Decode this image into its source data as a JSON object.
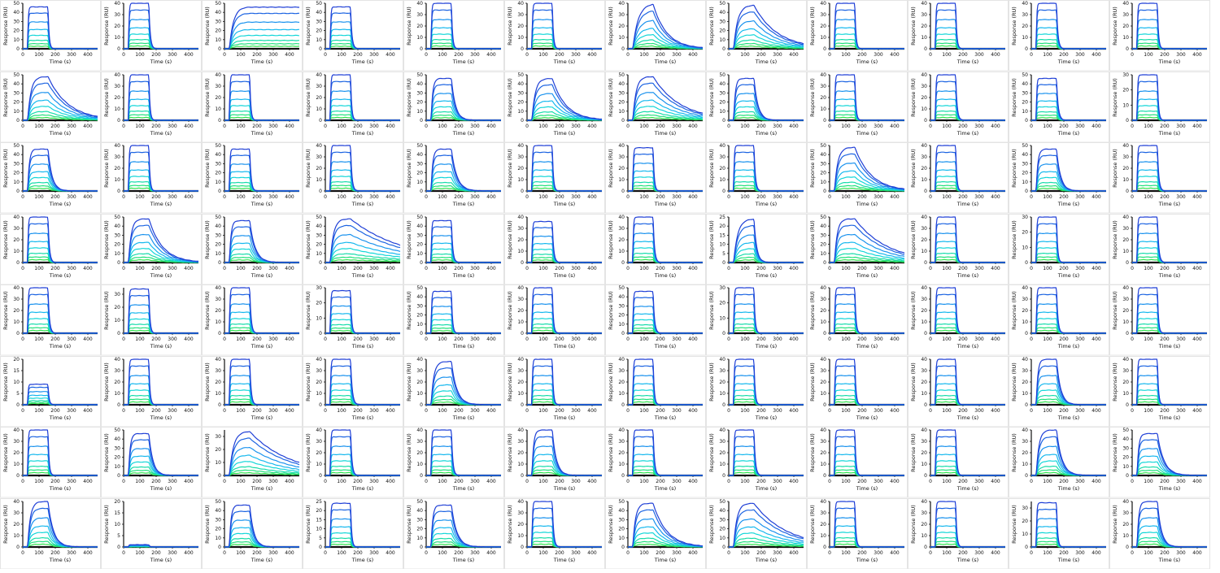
{
  "labels": {
    "x_axis": "Time (s)",
    "y_axis": "Response (RU)"
  },
  "x_ticks": [
    0,
    100,
    200,
    300,
    400
  ],
  "colors": [
    "#1f3fd6",
    "#1c64e2",
    "#1a92ee",
    "#16b8ee",
    "#12d6d8",
    "#16dcaa",
    "#1fe07c",
    "#2ee34d"
  ],
  "chart_data": {
    "type": "line",
    "grid": false,
    "xlim": [
      0,
      460
    ],
    "xlabel": "Time (s)",
    "ylabel": "Response (RU)",
    "rows": 8,
    "cols": 12,
    "concentration_fractions": [
      1,
      0.85,
      0.64,
      0.46,
      0.32,
      0.2,
      0.12,
      0.06
    ],
    "panels": [
      {
        "ymax": 50,
        "rmax": 46,
        "ka": 0.3,
        "kd": 0.15
      },
      {
        "ymax": 40,
        "rmax": 40,
        "ka": 0.3,
        "kd": 0.12
      },
      {
        "ymax": 50,
        "rmax": 46,
        "ka": 0.04,
        "kd": 0.0
      },
      {
        "ymax": 50,
        "rmax": 46,
        "ka": 0.3,
        "kd": 0.12
      },
      {
        "ymax": 40,
        "rmax": 40,
        "ka": 0.3,
        "kd": 0.15
      },
      {
        "ymax": 40,
        "rmax": 40,
        "ka": 0.3,
        "kd": 0.15
      },
      {
        "ymax": 40,
        "rmax": 40,
        "ka": 0.03,
        "kd": 0.012
      },
      {
        "ymax": 50,
        "rmax": 48,
        "ka": 0.04,
        "kd": 0.007
      },
      {
        "ymax": 40,
        "rmax": 40,
        "ka": 0.3,
        "kd": 0.15
      },
      {
        "ymax": 40,
        "rmax": 40,
        "ka": 0.3,
        "kd": 0.15
      },
      {
        "ymax": 40,
        "rmax": 40,
        "ka": 0.3,
        "kd": 0.12
      },
      {
        "ymax": 40,
        "rmax": 40,
        "ka": 0.3,
        "kd": 0.15
      },
      {
        "ymax": 50,
        "rmax": 48,
        "ka": 0.05,
        "kd": 0.008
      },
      {
        "ymax": 40,
        "rmax": 40,
        "ka": 0.3,
        "kd": 0.15
      },
      {
        "ymax": 40,
        "rmax": 40,
        "ka": 0.3,
        "kd": 0.15
      },
      {
        "ymax": 40,
        "rmax": 40,
        "ka": 0.3,
        "kd": 0.15
      },
      {
        "ymax": 50,
        "rmax": 46,
        "ka": 0.1,
        "kd": 0.04
      },
      {
        "ymax": 50,
        "rmax": 46,
        "ka": 0.05,
        "kd": 0.012
      },
      {
        "ymax": 50,
        "rmax": 48,
        "ka": 0.05,
        "kd": 0.006
      },
      {
        "ymax": 50,
        "rmax": 46,
        "ka": 0.1,
        "kd": 0.04
      },
      {
        "ymax": 40,
        "rmax": 40,
        "ka": 0.3,
        "kd": 0.15
      },
      {
        "ymax": 40,
        "rmax": 40,
        "ka": 0.3,
        "kd": 0.12
      },
      {
        "ymax": 50,
        "rmax": 46,
        "ka": 0.3,
        "kd": 0.1
      },
      {
        "ymax": 30,
        "rmax": 30,
        "ka": 0.3,
        "kd": 0.15
      },
      {
        "ymax": 50,
        "rmax": 46,
        "ka": 0.1,
        "kd": 0.04
      },
      {
        "ymax": 40,
        "rmax": 40,
        "ka": 0.3,
        "kd": 0.15
      },
      {
        "ymax": 50,
        "rmax": 46,
        "ka": 0.3,
        "kd": 0.12
      },
      {
        "ymax": 40,
        "rmax": 40,
        "ka": 0.3,
        "kd": 0.12
      },
      {
        "ymax": 50,
        "rmax": 46,
        "ka": 0.1,
        "kd": 0.03
      },
      {
        "ymax": 40,
        "rmax": 40,
        "ka": 0.3,
        "kd": 0.15
      },
      {
        "ymax": 40,
        "rmax": 38,
        "ka": 0.3,
        "kd": 0.15
      },
      {
        "ymax": 40,
        "rmax": 40,
        "ka": 0.3,
        "kd": 0.12
      },
      {
        "ymax": 50,
        "rmax": 48,
        "ka": 0.05,
        "kd": 0.01
      },
      {
        "ymax": 40,
        "rmax": 40,
        "ka": 0.3,
        "kd": 0.15
      },
      {
        "ymax": 50,
        "rmax": 46,
        "ka": 0.1,
        "kd": 0.04
      },
      {
        "ymax": 40,
        "rmax": 40,
        "ka": 0.3,
        "kd": 0.12
      },
      {
        "ymax": 40,
        "rmax": 40,
        "ka": 0.3,
        "kd": 0.12
      },
      {
        "ymax": 50,
        "rmax": 48,
        "ka": 0.06,
        "kd": 0.012
      },
      {
        "ymax": 50,
        "rmax": 46,
        "ka": 0.1,
        "kd": 0.03
      },
      {
        "ymax": 50,
        "rmax": 48,
        "ka": 0.05,
        "kd": 0.003
      },
      {
        "ymax": 50,
        "rmax": 46,
        "ka": 0.3,
        "kd": 0.12
      },
      {
        "ymax": 40,
        "rmax": 36,
        "ka": 0.3,
        "kd": 0.12
      },
      {
        "ymax": 40,
        "rmax": 40,
        "ka": 0.3,
        "kd": 0.12
      },
      {
        "ymax": 25,
        "rmax": 24,
        "ka": 0.04,
        "kd": 0.06
      },
      {
        "ymax": 50,
        "rmax": 48,
        "ka": 0.06,
        "kd": 0.005
      },
      {
        "ymax": 40,
        "rmax": 40,
        "ka": 0.3,
        "kd": 0.15
      },
      {
        "ymax": 30,
        "rmax": 30,
        "ka": 0.3,
        "kd": 0.15
      },
      {
        "ymax": 40,
        "rmax": 40,
        "ka": 0.3,
        "kd": 0.12
      },
      {
        "ymax": 40,
        "rmax": 40,
        "ka": 0.3,
        "kd": 0.12
      },
      {
        "ymax": 35,
        "rmax": 34,
        "ka": 0.3,
        "kd": 0.15
      },
      {
        "ymax": 40,
        "rmax": 40,
        "ka": 0.3,
        "kd": 0.12
      },
      {
        "ymax": 30,
        "rmax": 28,
        "ka": 0.3,
        "kd": 0.15
      },
      {
        "ymax": 50,
        "rmax": 46,
        "ka": 0.3,
        "kd": 0.15
      },
      {
        "ymax": 40,
        "rmax": 40,
        "ka": 0.3,
        "kd": 0.15
      },
      {
        "ymax": 50,
        "rmax": 46,
        "ka": 0.3,
        "kd": 0.12
      },
      {
        "ymax": 30,
        "rmax": 30,
        "ka": 0.3,
        "kd": 0.15
      },
      {
        "ymax": 40,
        "rmax": 40,
        "ka": 0.3,
        "kd": 0.15
      },
      {
        "ymax": 40,
        "rmax": 40,
        "ka": 0.3,
        "kd": 0.15
      },
      {
        "ymax": 40,
        "rmax": 40,
        "ka": 0.3,
        "kd": 0.12
      },
      {
        "ymax": 40,
        "rmax": 40,
        "ka": 0.3,
        "kd": 0.15
      },
      {
        "ymax": 20,
        "rmax": 9,
        "ka": 0.3,
        "kd": 0.15
      },
      {
        "ymax": 40,
        "rmax": 40,
        "ka": 0.3,
        "kd": 0.15
      },
      {
        "ymax": 40,
        "rmax": 40,
        "ka": 0.3,
        "kd": 0.12
      },
      {
        "ymax": 40,
        "rmax": 40,
        "ka": 0.3,
        "kd": 0.1
      },
      {
        "ymax": 40,
        "rmax": 38,
        "ka": 0.06,
        "kd": 0.03
      },
      {
        "ymax": 40,
        "rmax": 40,
        "ka": 0.3,
        "kd": 0.15
      },
      {
        "ymax": 40,
        "rmax": 40,
        "ka": 0.3,
        "kd": 0.15
      },
      {
        "ymax": 40,
        "rmax": 40,
        "ka": 0.3,
        "kd": 0.15
      },
      {
        "ymax": 40,
        "rmax": 40,
        "ka": 0.3,
        "kd": 0.15
      },
      {
        "ymax": 40,
        "rmax": 40,
        "ka": 0.3,
        "kd": 0.15
      },
      {
        "ymax": 40,
        "rmax": 40,
        "ka": 0.1,
        "kd": 0.04
      },
      {
        "ymax": 40,
        "rmax": 40,
        "ka": 0.3,
        "kd": 0.15
      },
      {
        "ymax": 40,
        "rmax": 40,
        "ka": 0.3,
        "kd": 0.15
      },
      {
        "ymax": 50,
        "rmax": 46,
        "ka": 0.1,
        "kd": 0.04
      },
      {
        "ymax": 35,
        "rmax": 34,
        "ka": 0.04,
        "kd": 0.004
      },
      {
        "ymax": 40,
        "rmax": 40,
        "ka": 0.3,
        "kd": 0.12
      },
      {
        "ymax": 40,
        "rmax": 40,
        "ka": 0.3,
        "kd": 0.12
      },
      {
        "ymax": 40,
        "rmax": 40,
        "ka": 0.1,
        "kd": 0.04
      },
      {
        "ymax": 40,
        "rmax": 40,
        "ka": 0.3,
        "kd": 0.12
      },
      {
        "ymax": 40,
        "rmax": 40,
        "ka": 0.3,
        "kd": 0.12
      },
      {
        "ymax": 40,
        "rmax": 40,
        "ka": 0.3,
        "kd": 0.15
      },
      {
        "ymax": 40,
        "rmax": 40,
        "ka": 0.3,
        "kd": 0.15
      },
      {
        "ymax": 40,
        "rmax": 40,
        "ka": 0.06,
        "kd": 0.03
      },
      {
        "ymax": 50,
        "rmax": 46,
        "ka": 0.1,
        "kd": 0.025
      },
      {
        "ymax": 40,
        "rmax": 40,
        "ka": 0.06,
        "kd": 0.03
      },
      {
        "ymax": 20,
        "rmax": 1,
        "ka": 0.3,
        "kd": 0.15
      },
      {
        "ymax": 50,
        "rmax": 46,
        "ka": 0.1,
        "kd": 0.04
      },
      {
        "ymax": 25,
        "rmax": 24,
        "ka": 0.3,
        "kd": 0.15
      },
      {
        "ymax": 50,
        "rmax": 46,
        "ka": 0.1,
        "kd": 0.03
      },
      {
        "ymax": 40,
        "rmax": 40,
        "ka": 0.3,
        "kd": 0.12
      },
      {
        "ymax": 50,
        "rmax": 48,
        "ka": 0.06,
        "kd": 0.012
      },
      {
        "ymax": 50,
        "rmax": 48,
        "ka": 0.05,
        "kd": 0.005
      },
      {
        "ymax": 40,
        "rmax": 40,
        "ka": 0.3,
        "kd": 0.15
      },
      {
        "ymax": 40,
        "rmax": 40,
        "ka": 0.3,
        "kd": 0.15
      },
      {
        "ymax": 35,
        "rmax": 34,
        "ka": 0.3,
        "kd": 0.15
      },
      {
        "ymax": 40,
        "rmax": 40,
        "ka": 0.1,
        "kd": 0.04
      }
    ]
  }
}
